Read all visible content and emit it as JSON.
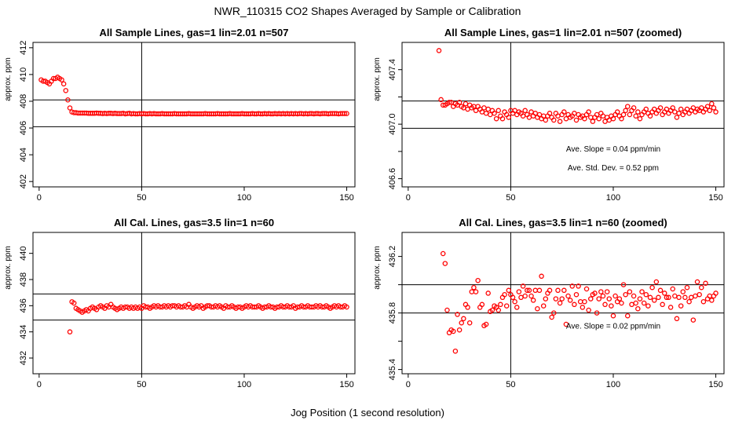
{
  "title": "NWR_110315  CO2 Shapes Averaged by Sample or Calibration",
  "xlabel": "Jog Position (1 second resolution)",
  "colors": {
    "points": "#ff0000",
    "lines": "#000000"
  },
  "chart_data": [
    {
      "type": "scatter",
      "title": "All Sample Lines, gas=1 lin=2.01 n=507",
      "ylabel": "approx. ppm",
      "xlim": [
        -3,
        154
      ],
      "ylim": [
        401.6,
        412.4
      ],
      "xticks": [
        0,
        50,
        100,
        150
      ],
      "yticks": [
        402,
        404,
        406,
        408,
        410,
        412
      ],
      "vline": 50,
      "hlines": [
        408.1,
        406.1
      ],
      "annotations": [],
      "x": [
        1,
        2,
        3,
        4,
        5,
        6,
        7,
        8,
        9,
        10,
        11,
        12,
        13,
        14,
        15,
        16,
        17,
        18,
        19,
        20,
        21,
        22,
        23,
        24,
        25,
        26,
        27,
        28,
        29,
        30,
        31,
        32,
        33,
        34,
        35,
        36,
        37,
        38,
        39,
        40,
        41,
        42,
        43,
        44,
        45,
        46,
        47,
        48,
        49,
        50,
        51,
        52,
        53,
        54,
        55,
        56,
        57,
        58,
        59,
        60,
        61,
        62,
        63,
        64,
        65,
        66,
        67,
        68,
        69,
        70,
        71,
        72,
        73,
        74,
        75,
        76,
        77,
        78,
        79,
        80,
        81,
        82,
        83,
        84,
        85,
        86,
        87,
        88,
        89,
        90,
        91,
        92,
        93,
        94,
        95,
        96,
        97,
        98,
        99,
        100,
        101,
        102,
        103,
        104,
        105,
        106,
        107,
        108,
        109,
        110,
        111,
        112,
        113,
        114,
        115,
        116,
        117,
        118,
        119,
        120,
        121,
        122,
        123,
        124,
        125,
        126,
        127,
        128,
        129,
        130,
        131,
        132,
        133,
        134,
        135,
        136,
        137,
        138,
        139,
        140,
        141,
        142,
        143,
        144,
        145,
        146,
        147,
        148,
        149,
        150
      ],
      "y": [
        409.6,
        409.5,
        409.5,
        409.4,
        409.3,
        409.5,
        409.7,
        409.7,
        409.8,
        409.7,
        409.6,
        409.3,
        408.8,
        408.1,
        407.5,
        407.2,
        407.15,
        407.15,
        407.12,
        407.12,
        407.12,
        407.12,
        407.12,
        407.1,
        407.1,
        407.1,
        407.1,
        407.12,
        407.1,
        407.1,
        407.08,
        407.1,
        407.08,
        407.1,
        407.1,
        407.08,
        407.1,
        407.08,
        407.08,
        407.08,
        407.1,
        407.06,
        407.08,
        407.1,
        407.06,
        407.08,
        407.06,
        407.06,
        407.08,
        407.06,
        407.08,
        407.06,
        407.06,
        407.08,
        407.06,
        407.08,
        407.06,
        407.06,
        407.06,
        407.08,
        407.06,
        407.06,
        407.06,
        407.06,
        407.06,
        407.08,
        407.06,
        407.06,
        407.06,
        407.06,
        407.06,
        407.06,
        407.08,
        407.06,
        407.06,
        407.06,
        407.06,
        407.06,
        407.06,
        407.06,
        407.08,
        407.06,
        407.06,
        407.06,
        407.06,
        407.06,
        407.08,
        407.06,
        407.06,
        407.06,
        407.06,
        407.06,
        407.08,
        407.06,
        407.06,
        407.06,
        407.06,
        407.06,
        407.08,
        407.06,
        407.06,
        407.06,
        407.06,
        407.08,
        407.06,
        407.06,
        407.08,
        407.06,
        407.06,
        407.08,
        407.06,
        407.08,
        407.06,
        407.06,
        407.08,
        407.06,
        407.08,
        407.06,
        407.08,
        407.06,
        407.08,
        407.06,
        407.08,
        407.06,
        407.08,
        407.06,
        407.08,
        407.08,
        407.06,
        407.08,
        407.06,
        407.08,
        407.08,
        407.06,
        407.08,
        407.08,
        407.06,
        407.08,
        407.08,
        407.08,
        407.06,
        407.08,
        407.08,
        407.08,
        407.08,
        407.06,
        407.08,
        407.08,
        407.08,
        407.08
      ]
    },
    {
      "type": "scatter",
      "title": "All Sample Lines, gas=1 lin=2.01 n=507 (zoomed)",
      "ylabel": "approx. ppm",
      "xlim": [
        -3,
        154
      ],
      "ylim": [
        406.54,
        407.6
      ],
      "xticks": [
        0,
        50,
        100,
        150
      ],
      "yticks": [
        406.6,
        406.8,
        407.0,
        407.2,
        407.4
      ],
      "ytick_labels": [
        "406.6",
        "",
        "407.0",
        "",
        "407.4"
      ],
      "vline": 50,
      "hlines": [
        407.17,
        406.97
      ],
      "annotations": [
        {
          "text": "Ave. Slope =  0.04  ppm/min",
          "x": 100,
          "y": 406.8
        },
        {
          "text": "Ave. Std. Dev. =  0.52  ppm",
          "x": 100,
          "y": 406.66
        }
      ],
      "x": [
        15,
        16,
        17,
        18,
        19,
        20,
        21,
        22,
        23,
        24,
        25,
        26,
        27,
        28,
        29,
        30,
        31,
        32,
        33,
        34,
        35,
        36,
        37,
        38,
        39,
        40,
        41,
        42,
        43,
        44,
        45,
        46,
        47,
        48,
        49,
        50,
        51,
        52,
        53,
        54,
        55,
        56,
        57,
        58,
        59,
        60,
        61,
        62,
        63,
        64,
        65,
        66,
        67,
        68,
        69,
        70,
        71,
        72,
        73,
        74,
        75,
        76,
        77,
        78,
        79,
        80,
        81,
        82,
        83,
        84,
        85,
        86,
        87,
        88,
        89,
        90,
        91,
        92,
        93,
        94,
        95,
        96,
        97,
        98,
        99,
        100,
        101,
        102,
        103,
        104,
        105,
        106,
        107,
        108,
        109,
        110,
        111,
        112,
        113,
        114,
        115,
        116,
        117,
        118,
        119,
        120,
        121,
        122,
        123,
        124,
        125,
        126,
        127,
        128,
        129,
        130,
        131,
        132,
        133,
        134,
        135,
        136,
        137,
        138,
        139,
        140,
        141,
        142,
        143,
        144,
        145,
        146,
        147,
        148,
        149,
        150
      ],
      "y": [
        407.54,
        407.18,
        407.14,
        407.14,
        407.15,
        407.16,
        407.16,
        407.13,
        407.15,
        407.14,
        407.16,
        407.13,
        407.12,
        407.15,
        407.11,
        407.14,
        407.12,
        407.13,
        407.1,
        407.13,
        407.11,
        407.09,
        407.12,
        407.08,
        407.11,
        407.07,
        407.1,
        407.08,
        407.04,
        407.1,
        407.06,
        407.04,
        407.09,
        407.07,
        407.05,
        407.1,
        407.08,
        407.1,
        407.07,
        407.09,
        407.08,
        407.06,
        407.1,
        407.07,
        407.05,
        407.09,
        407.06,
        407.08,
        407.05,
        407.07,
        407.04,
        407.06,
        407.03,
        407.06,
        407.08,
        407.05,
        407.03,
        407.08,
        407.06,
        407.02,
        407.07,
        407.09,
        407.04,
        407.07,
        407.05,
        407.06,
        407.08,
        407.03,
        407.07,
        407.05,
        407.06,
        407.04,
        407.07,
        407.09,
        407.05,
        407.02,
        407.05,
        407.07,
        407.04,
        407.08,
        407.06,
        407.02,
        407.05,
        407.03,
        407.06,
        407.04,
        407.07,
        407.09,
        407.06,
        407.04,
        407.07,
        407.1,
        407.13,
        407.07,
        407.1,
        407.12,
        407.06,
        407.09,
        407.04,
        407.07,
        407.09,
        407.11,
        407.08,
        407.06,
        407.09,
        407.11,
        407.08,
        407.1,
        407.12,
        407.07,
        407.09,
        407.11,
        407.08,
        407.1,
        407.12,
        407.09,
        407.05,
        407.08,
        407.11,
        407.07,
        407.09,
        407.11,
        407.08,
        407.1,
        407.12,
        407.09,
        407.11,
        407.1,
        407.12,
        407.09,
        407.11,
        407.13,
        407.1,
        407.15,
        407.12,
        407.09
      ]
    },
    {
      "type": "scatter",
      "title": "All Cal. Lines, gas=3.5 lin=1 n=60",
      "ylabel": "approx. ppm",
      "xlim": [
        -3,
        154
      ],
      "ylim": [
        430.8,
        441.6
      ],
      "xticks": [
        0,
        50,
        100,
        150
      ],
      "yticks": [
        432,
        434,
        436,
        438,
        440
      ],
      "vline": 50,
      "hlines": [
        436.9,
        434.9
      ],
      "annotations": [],
      "x": [
        15,
        16,
        17,
        18,
        19,
        20,
        21,
        22,
        23,
        24,
        25,
        26,
        27,
        28,
        29,
        30,
        31,
        32,
        33,
        34,
        35,
        36,
        37,
        38,
        39,
        40,
        41,
        42,
        43,
        44,
        45,
        46,
        47,
        48,
        49,
        50,
        51,
        52,
        53,
        54,
        55,
        56,
        57,
        58,
        59,
        60,
        61,
        62,
        63,
        64,
        65,
        66,
        67,
        68,
        69,
        70,
        71,
        72,
        73,
        74,
        75,
        76,
        77,
        78,
        79,
        80,
        81,
        82,
        83,
        84,
        85,
        86,
        87,
        88,
        89,
        90,
        91,
        92,
        93,
        94,
        95,
        96,
        97,
        98,
        99,
        100,
        101,
        102,
        103,
        104,
        105,
        106,
        107,
        108,
        109,
        110,
        111,
        112,
        113,
        114,
        115,
        116,
        117,
        118,
        119,
        120,
        121,
        122,
        123,
        124,
        125,
        126,
        127,
        128,
        129,
        130,
        131,
        132,
        133,
        134,
        135,
        136,
        137,
        138,
        139,
        140,
        141,
        142,
        143,
        144,
        145,
        146,
        147,
        148,
        149,
        150
      ],
      "y": [
        434.0,
        436.3,
        436.2,
        435.8,
        435.7,
        435.6,
        435.5,
        435.6,
        435.7,
        435.6,
        435.8,
        435.9,
        435.8,
        435.7,
        435.9,
        436.0,
        435.9,
        435.8,
        436.0,
        435.9,
        436.1,
        435.9,
        435.8,
        435.7,
        435.8,
        435.9,
        435.8,
        435.9,
        435.9,
        435.8,
        435.9,
        435.8,
        435.9,
        435.8,
        435.9,
        435.8,
        436.0,
        435.9,
        435.9,
        435.8,
        435.9,
        436.0,
        435.9,
        436.0,
        435.9,
        435.9,
        436.0,
        435.9,
        436.0,
        435.9,
        436.0,
        436.0,
        435.9,
        436.0,
        435.9,
        435.9,
        436.0,
        435.9,
        436.1,
        435.9,
        435.8,
        435.9,
        436.0,
        435.9,
        436.0,
        435.8,
        435.9,
        436.0,
        436.0,
        435.9,
        435.9,
        436.0,
        435.9,
        436.0,
        435.9,
        435.8,
        436.0,
        435.9,
        435.9,
        436.0,
        435.9,
        435.8,
        435.9,
        435.9,
        435.8,
        435.9,
        436.0,
        435.9,
        436.0,
        435.9,
        435.9,
        435.9,
        436.0,
        435.9,
        435.8,
        435.9,
        435.9,
        436.0,
        435.9,
        435.9,
        435.8,
        435.9,
        435.9,
        436.0,
        435.9,
        435.9,
        436.0,
        435.9,
        435.9,
        436.0,
        435.8,
        435.9,
        435.9,
        436.0,
        435.9,
        435.9,
        436.0,
        435.9,
        435.9,
        435.9,
        436.0,
        435.9,
        436.0,
        435.9,
        435.9,
        436.0,
        435.9,
        435.8,
        435.9,
        436.0,
        435.9,
        436.0,
        435.9,
        435.9,
        436.0,
        435.9
      ]
    },
    {
      "type": "scatter",
      "title": "All Cal. Lines, gas=3.5 lin=1 n=60 (zoomed)",
      "ylabel": "approx. ppm",
      "xlim": [
        -3,
        154
      ],
      "ylim": [
        435.37,
        436.37
      ],
      "xticks": [
        0,
        50,
        100,
        150
      ],
      "yticks": [
        435.4,
        435.6,
        435.8,
        436.0,
        436.2
      ],
      "ytick_labels": [
        "435.4",
        "",
        "435.8",
        "",
        "436.2"
      ],
      "vline": 50,
      "hlines": [
        436.0,
        435.8
      ],
      "annotations": [
        {
          "text": "Ave. Slope =  0.02  ppm/min",
          "x": 100,
          "y": 435.69
        }
      ],
      "x": [
        17,
        18,
        19,
        20,
        21,
        22,
        23,
        24,
        25,
        26,
        27,
        28,
        29,
        30,
        31,
        32,
        33,
        34,
        35,
        36,
        37,
        38,
        39,
        40,
        41,
        42,
        43,
        44,
        45,
        46,
        47,
        48,
        49,
        50,
        51,
        52,
        53,
        54,
        55,
        56,
        57,
        58,
        59,
        60,
        61,
        62,
        63,
        64,
        65,
        66,
        67,
        68,
        69,
        70,
        71,
        72,
        73,
        74,
        75,
        76,
        77,
        78,
        79,
        80,
        81,
        82,
        83,
        84,
        85,
        86,
        87,
        88,
        89,
        90,
        91,
        92,
        93,
        94,
        95,
        96,
        97,
        98,
        99,
        100,
        101,
        102,
        103,
        104,
        105,
        106,
        107,
        108,
        109,
        110,
        111,
        112,
        113,
        114,
        115,
        116,
        117,
        118,
        119,
        120,
        121,
        122,
        123,
        124,
        125,
        126,
        127,
        128,
        129,
        130,
        131,
        132,
        133,
        134,
        135,
        136,
        137,
        138,
        139,
        140,
        141,
        142,
        143,
        144,
        145,
        146,
        147,
        148,
        149,
        150
      ],
      "y": [
        436.22,
        436.15,
        435.82,
        435.66,
        435.68,
        435.67,
        435.53,
        435.79,
        435.68,
        435.73,
        435.76,
        435.86,
        435.84,
        435.73,
        435.95,
        435.98,
        435.95,
        436.03,
        435.84,
        435.86,
        435.71,
        435.72,
        435.94,
        435.81,
        435.82,
        435.85,
        435.84,
        435.82,
        435.86,
        435.91,
        435.93,
        435.85,
        435.96,
        435.93,
        435.91,
        435.88,
        435.84,
        435.95,
        435.91,
        435.99,
        435.92,
        435.96,
        435.96,
        435.92,
        435.89,
        435.96,
        435.83,
        435.96,
        436.06,
        435.85,
        435.9,
        435.94,
        435.96,
        435.77,
        435.8,
        435.9,
        435.96,
        435.87,
        435.9,
        435.96,
        435.72,
        435.92,
        435.89,
        435.99,
        435.86,
        435.93,
        435.99,
        435.88,
        435.84,
        435.88,
        435.97,
        435.82,
        435.9,
        435.93,
        435.94,
        435.8,
        435.9,
        435.95,
        435.92,
        435.86,
        435.95,
        435.9,
        435.85,
        435.78,
        435.92,
        435.88,
        435.9,
        435.87,
        436.0,
        435.93,
        435.78,
        435.95,
        435.86,
        435.92,
        435.87,
        435.83,
        435.9,
        435.95,
        435.87,
        435.93,
        435.85,
        435.91,
        435.98,
        435.89,
        436.02,
        435.91,
        435.96,
        435.86,
        435.94,
        435.91,
        435.91,
        435.84,
        435.97,
        435.92,
        435.76,
        435.91,
        435.85,
        435.95,
        435.91,
        435.98,
        435.88,
        435.91,
        435.75,
        435.92,
        436.02,
        435.93,
        435.98,
        435.88,
        436.01,
        435.9,
        435.92,
        435.89,
        435.92,
        435.94
      ]
    }
  ]
}
